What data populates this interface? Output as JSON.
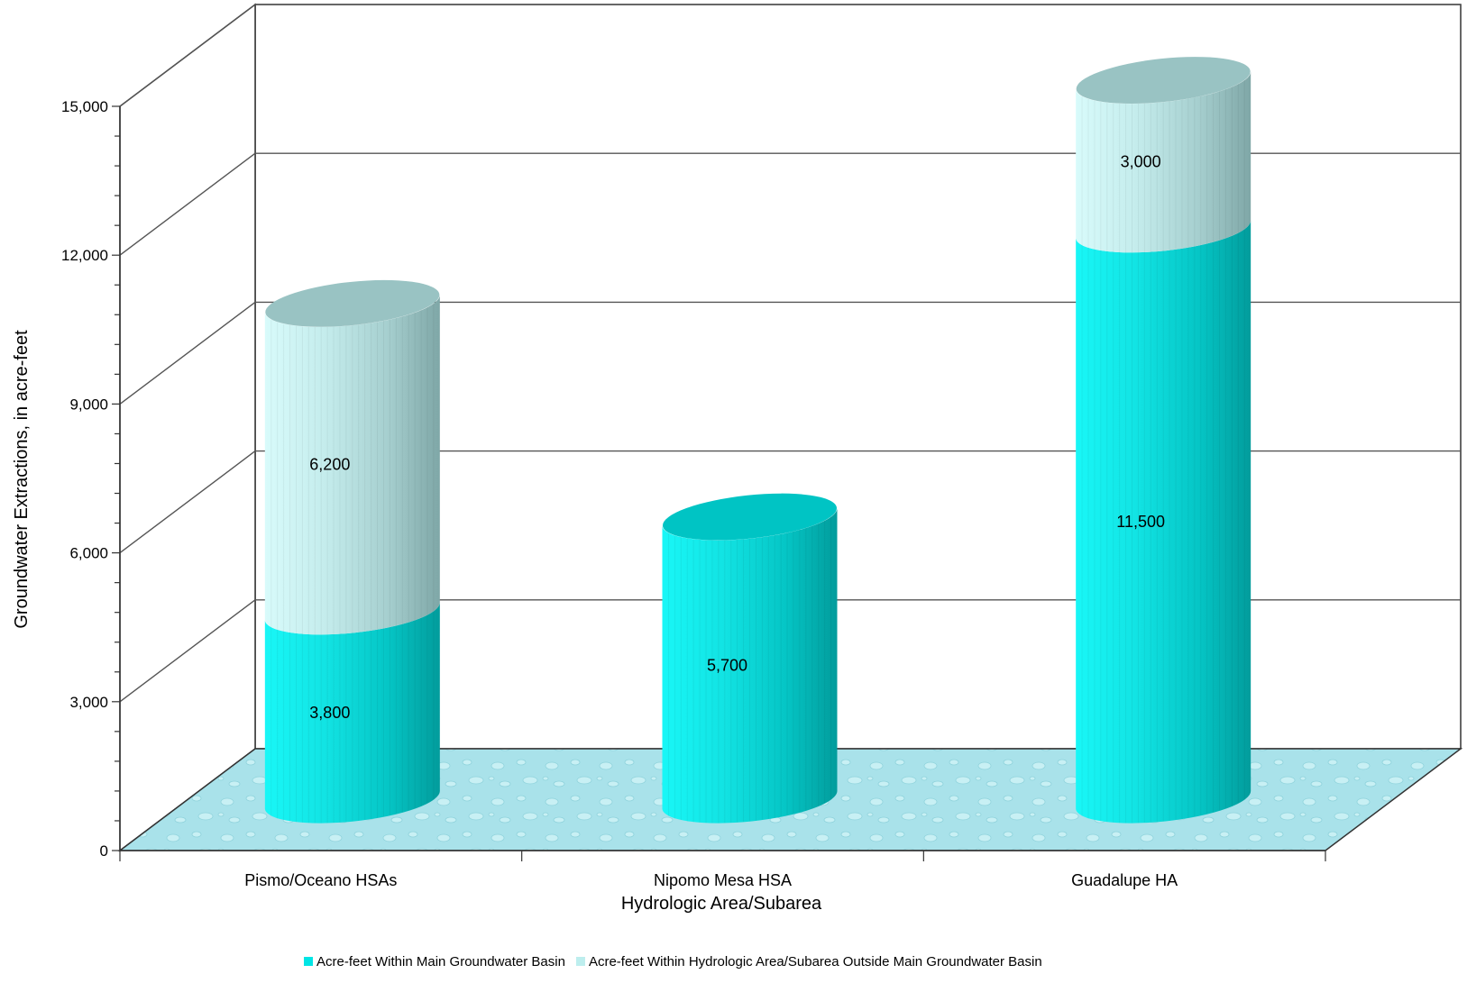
{
  "chart_data": {
    "type": "bar",
    "stacked": true,
    "style": "3d-cylinder",
    "categories": [
      "Pismo/Oceano HSAs",
      "Nipomo Mesa HSA",
      "Guadalupe HA"
    ],
    "series": [
      {
        "name": "Acre-feet Within Main Groundwater Basin",
        "values": [
          3800,
          5700,
          11500
        ],
        "color": "#00e5e5"
      },
      {
        "name": "Acre-feet Within Hydrologic Area/Subarea Outside Main Groundwater Basin",
        "values": [
          6200,
          null,
          3000
        ],
        "color": "#bdeeee"
      }
    ],
    "data_labels": [
      [
        "3,800",
        "5,700",
        "11,500"
      ],
      [
        "6,200",
        "",
        "3,000"
      ]
    ],
    "xlabel": "Hydrologic Area/Subarea",
    "ylabel": "Groundwater Extractions, in acre-feet",
    "ylim": [
      0,
      15000
    ],
    "yticks": [
      0,
      3000,
      6000,
      9000,
      12000,
      15000
    ],
    "ytick_labels": [
      "0",
      "3,000",
      "6,000",
      "9,000",
      "12,000",
      "15,000"
    ],
    "grid": true,
    "legend_position": "bottom"
  },
  "colors": {
    "floor": "#a9e2ea",
    "gridline": "#555555",
    "axis": "#333333"
  }
}
